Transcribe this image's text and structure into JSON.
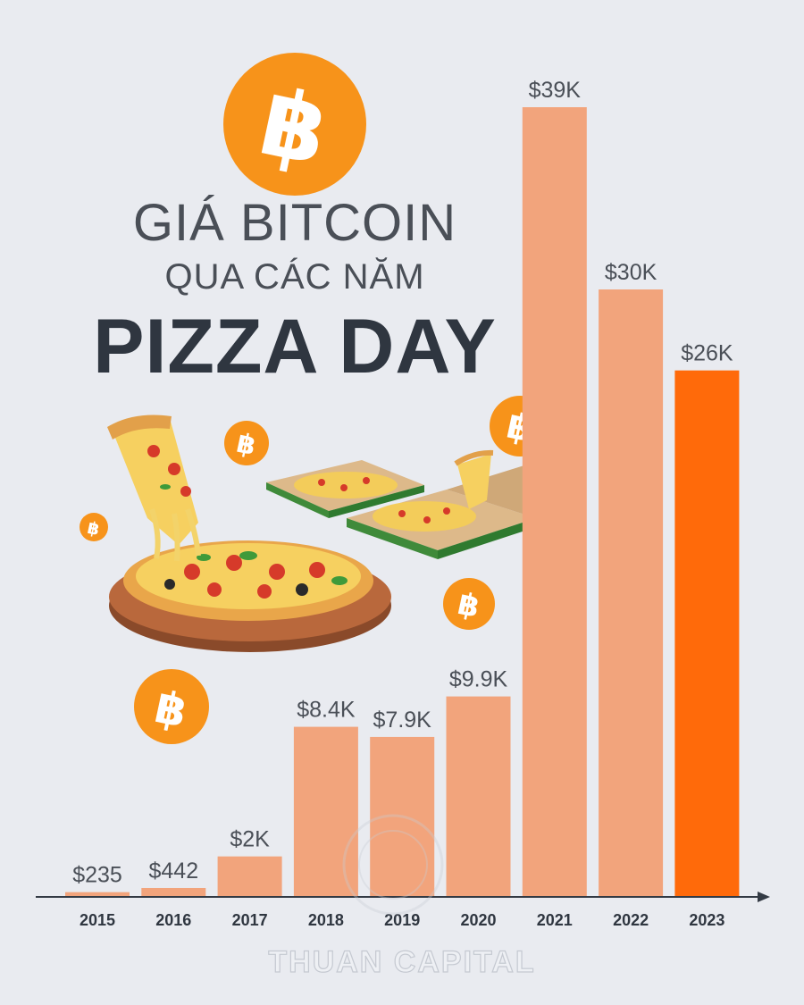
{
  "title": {
    "line1": "GIÁ BITCOIN",
    "line2": "QUA CÁC NĂM",
    "line3": "PIZZA DAY"
  },
  "watermark": "THUAN CAPITAL",
  "icons": {
    "bitcoin": "bitcoin-icon",
    "pizza": "pizza-illustration"
  },
  "colors": {
    "background": "#e9ebf0",
    "bar": "#f2a47c",
    "bar_highlight": "#ff6a0a",
    "bitcoin_orange": "#f7931a",
    "label_text": "#4a4f57",
    "axis": "#333a44"
  },
  "chart_data": {
    "type": "bar",
    "categories": [
      "2015",
      "2016",
      "2017",
      "2018",
      "2019",
      "2020",
      "2021",
      "2022",
      "2023"
    ],
    "values": [
      235,
      442,
      2000,
      8400,
      7900,
      9900,
      39000,
      30000,
      26000
    ],
    "value_labels": [
      "$235",
      "$442",
      "$2K",
      "$8.4K",
      "$7.9K",
      "$9.9K",
      "$39K",
      "$30K",
      "$26K"
    ],
    "highlight_category": "2023",
    "title": "GIÁ BITCOIN QUA CÁC NĂM PIZZA DAY",
    "xlabel": "",
    "ylabel": "",
    "ylim": [
      0,
      39000
    ],
    "grid": false,
    "legend": "none"
  }
}
